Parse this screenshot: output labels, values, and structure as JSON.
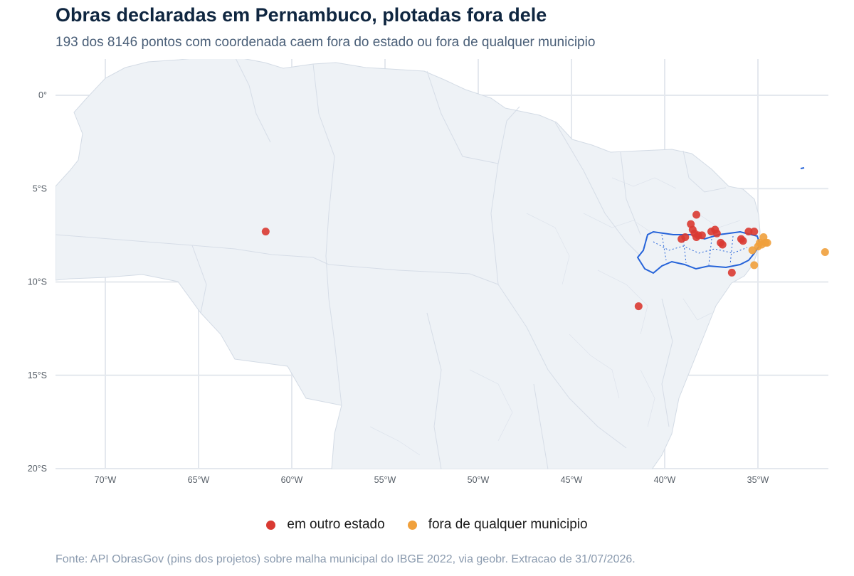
{
  "title": "Obras declaradas em Pernambuco, plotadas fora dele",
  "subtitle": "193 dos 8146 pontos com coordenada caem fora do estado ou fora de qualquer municipio",
  "caption": "Fonte: API ObrasGov (pins dos projetos) sobre malha municipal do IBGE 2022, via geobr. Extracao de 31/07/2026.",
  "colors": {
    "outro_estado": "#d93a32",
    "fora_municipio": "#f0a03c",
    "pernambuco_outline": "#2563d9",
    "land": "#eef2f6",
    "borders": "#d3dbe5",
    "grid": "#e4e8ee"
  },
  "legend": [
    {
      "label": "em outro estado",
      "color": "#d93a32"
    },
    {
      "label": "fora de qualquer municipio",
      "color": "#f0a03c"
    }
  ],
  "chart_data": {
    "type": "scatter",
    "xlabel": "",
    "ylabel": "",
    "xlim": [
      -73,
      -31.5
    ],
    "ylim": [
      -20,
      2
    ],
    "x_ticks": [
      {
        "value": -70,
        "label": "70°W"
      },
      {
        "value": -65,
        "label": "65°W"
      },
      {
        "value": -60,
        "label": "60°W"
      },
      {
        "value": -55,
        "label": "55°W"
      },
      {
        "value": -50,
        "label": "50°W"
      },
      {
        "value": -45,
        "label": "45°W"
      },
      {
        "value": -40,
        "label": "40°W"
      },
      {
        "value": -35,
        "label": "35°W"
      }
    ],
    "y_ticks": [
      {
        "value": 0,
        "label": "0°"
      },
      {
        "value": -5,
        "label": "5°S"
      },
      {
        "value": -10,
        "label": "10°S"
      },
      {
        "value": -15,
        "label": "15°S"
      },
      {
        "value": -20,
        "label": "20°S"
      }
    ],
    "series": [
      {
        "name": "em outro estado",
        "color": "#d93a32",
        "points": [
          {
            "x": -61.4,
            "y": -7.3
          },
          {
            "x": -41.4,
            "y": -11.3
          },
          {
            "x": -38.3,
            "y": -6.4
          },
          {
            "x": -38.6,
            "y": -6.9
          },
          {
            "x": -38.5,
            "y": -7.2
          },
          {
            "x": -38.9,
            "y": -7.6
          },
          {
            "x": -39.1,
            "y": -7.7
          },
          {
            "x": -38.4,
            "y": -7.4
          },
          {
            "x": -38.2,
            "y": -7.5
          },
          {
            "x": -38.0,
            "y": -7.5
          },
          {
            "x": -38.3,
            "y": -7.6
          },
          {
            "x": -37.5,
            "y": -7.3
          },
          {
            "x": -37.3,
            "y": -7.2
          },
          {
            "x": -37.2,
            "y": -7.4
          },
          {
            "x": -37.0,
            "y": -7.9
          },
          {
            "x": -36.9,
            "y": -8.0
          },
          {
            "x": -35.8,
            "y": -7.8
          },
          {
            "x": -35.9,
            "y": -7.7
          },
          {
            "x": -35.5,
            "y": -7.3
          },
          {
            "x": -35.2,
            "y": -7.3
          },
          {
            "x": -36.4,
            "y": -9.5
          }
        ]
      },
      {
        "name": "fora de qualquer municipio",
        "color": "#f0a03c",
        "points": [
          {
            "x": -34.7,
            "y": -7.6
          },
          {
            "x": -34.9,
            "y": -7.9
          },
          {
            "x": -34.6,
            "y": -7.9
          },
          {
            "x": -35.0,
            "y": -8.1
          },
          {
            "x": -34.8,
            "y": -8.0
          },
          {
            "x": -35.3,
            "y": -8.3
          },
          {
            "x": -34.5,
            "y": -7.9
          },
          {
            "x": -35.2,
            "y": -9.1
          },
          {
            "x": -31.4,
            "y": -8.4
          }
        ]
      }
    ]
  }
}
